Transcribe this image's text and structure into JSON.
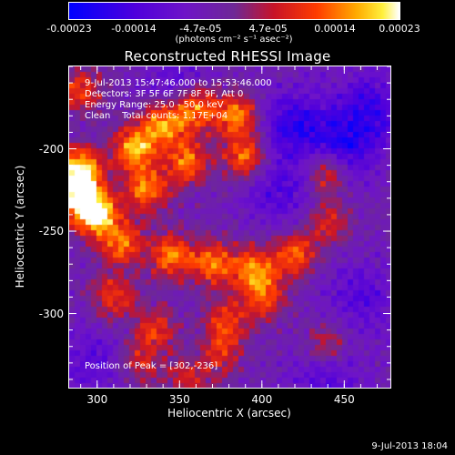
{
  "colorbar": {
    "tick_labels": [
      "-0.00023",
      "-0.00014",
      "-4.7e-05",
      "4.7e-05",
      "0.00014",
      "0.00023"
    ],
    "tick_values": [
      -0.00023,
      -0.00014,
      -4.7e-05,
      4.7e-05,
      0.00014,
      0.00023
    ],
    "units_label": "(photons cm⁻² s⁻¹ asec⁻²)"
  },
  "chart_data": {
    "type": "heatmap",
    "title": "Reconstructed RHESSI Image",
    "xlabel": "Heliocentric X (arcsec)",
    "ylabel": "Heliocentric Y (arcsec)",
    "xlim": [
      283,
      478
    ],
    "ylim": [
      -345,
      -150
    ],
    "x_ticks": [
      300,
      350,
      400,
      450
    ],
    "y_ticks": [
      -200,
      -250,
      -300
    ],
    "colormap": "blue-purple-red-orange-yellow-white",
    "value_range": [
      -0.00023,
      0.00023
    ],
    "peak_position": [
      302,
      -236
    ],
    "hot_regions": [
      {
        "x": 288,
        "y": -228,
        "level": 0.95
      },
      {
        "x": 300,
        "y": -240,
        "level": 1.0
      },
      {
        "x": 290,
        "y": -212,
        "level": 0.9
      },
      {
        "x": 323,
        "y": -200,
        "level": 0.85
      },
      {
        "x": 340,
        "y": -185,
        "level": 0.8
      },
      {
        "x": 360,
        "y": -175,
        "level": 0.78
      },
      {
        "x": 385,
        "y": -180,
        "level": 0.75
      },
      {
        "x": 390,
        "y": -205,
        "level": 0.7
      },
      {
        "x": 330,
        "y": -225,
        "level": 0.72
      },
      {
        "x": 355,
        "y": -208,
        "level": 0.7
      },
      {
        "x": 315,
        "y": -258,
        "level": 0.65
      },
      {
        "x": 345,
        "y": -265,
        "level": 0.7
      },
      {
        "x": 370,
        "y": -270,
        "level": 0.72
      },
      {
        "x": 395,
        "y": -272,
        "level": 0.68
      },
      {
        "x": 420,
        "y": -265,
        "level": 0.65
      },
      {
        "x": 400,
        "y": -290,
        "level": 0.6
      },
      {
        "x": 378,
        "y": -305,
        "level": 0.55
      },
      {
        "x": 310,
        "y": -290,
        "level": 0.55
      },
      {
        "x": 335,
        "y": -310,
        "level": 0.5
      },
      {
        "x": 440,
        "y": -215,
        "level": 0.6
      },
      {
        "x": 440,
        "y": -245,
        "level": 0.45
      },
      {
        "x": 325,
        "y": -330,
        "level": 0.45
      },
      {
        "x": 355,
        "y": -340,
        "level": 0.4
      },
      {
        "x": 440,
        "y": -320,
        "level": 0.45
      },
      {
        "x": 375,
        "y": -325,
        "level": 0.4
      },
      {
        "x": 290,
        "y": -165,
        "level": 0.55
      }
    ],
    "cold_regions": [
      {
        "x": 420,
        "y": -185,
        "level": 0.85
      },
      {
        "x": 450,
        "y": -200,
        "level": 0.8
      },
      {
        "x": 465,
        "y": -175,
        "level": 0.75
      },
      {
        "x": 410,
        "y": -225,
        "level": 0.6
      },
      {
        "x": 460,
        "y": -290,
        "level": 0.55
      },
      {
        "x": 300,
        "y": -330,
        "level": 0.5
      },
      {
        "x": 350,
        "y": -160,
        "level": 0.45
      },
      {
        "x": 440,
        "y": -340,
        "level": 0.6
      }
    ]
  },
  "annotations": {
    "time_range": "9-Jul-2013 15:47:46.000 to 15:53:46.000",
    "detectors": "Detectors: 3F 5F 6F 7F 8F 9F, Att 0",
    "energy_range": "Energy Range: 25.0 - 50.0 keV",
    "method": "Clean    Total counts: 1.17E+04",
    "peak": "Position of Peak = [302,-236]"
  },
  "timestamp": "9-Jul-2013 18:04"
}
